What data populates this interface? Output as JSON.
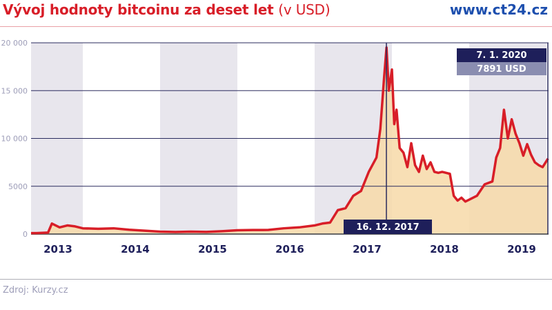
{
  "header": {
    "title_bold": "Vývoj hodnoty bitcoinu za deset let",
    "title_unit": "(v USD)",
    "brand": "www.ct24.cz"
  },
  "footer": {
    "source": "Zdroj: Kurzy.cz"
  },
  "annotations": {
    "peak_date": "16. 12. 2017",
    "latest_date": "7. 1. 2020",
    "latest_value": "7891 USD"
  },
  "colors": {
    "title": "#d81e28",
    "brand": "#1d4fae",
    "line": "#d81e28",
    "fill": "#f7d9a8",
    "band": "#e8e6ed",
    "grid": "#2a2b5e",
    "label_dark": "#1e1f5a",
    "label_light": "#8a8db0"
  },
  "chart_data": {
    "type": "area",
    "title": "Vývoj hodnoty bitcoinu za deset let (v USD)",
    "xlabel": "",
    "ylabel": "USD",
    "ylim": [
      0,
      20000
    ],
    "yticks": [
      0,
      5000,
      10000,
      15000,
      20000
    ],
    "ytick_labels": [
      "0",
      "5000",
      "10 000",
      "15 000",
      "20 000"
    ],
    "categories": [
      "2013",
      "2014",
      "2015",
      "2016",
      "2017",
      "2018",
      "2019"
    ],
    "grid": true,
    "legend": "none",
    "x": [
      2013.0,
      2013.4,
      2013.55,
      2013.6,
      2013.7,
      2013.8,
      2013.9,
      2014.0,
      2014.2,
      2014.4,
      2014.6,
      2014.8,
      2015.0,
      2015.2,
      2015.4,
      2015.6,
      2015.8,
      2016.0,
      2016.2,
      2016.4,
      2016.6,
      2016.8,
      2017.0,
      2017.1,
      2017.2,
      2017.3,
      2017.4,
      2017.5,
      2017.6,
      2017.7,
      2017.8,
      2017.85,
      2017.9,
      2017.93,
      2017.96,
      2018.0,
      2018.03,
      2018.06,
      2018.1,
      2018.15,
      2018.2,
      2018.25,
      2018.3,
      2018.35,
      2018.4,
      2018.45,
      2018.5,
      2018.55,
      2018.6,
      2018.65,
      2018.7,
      2018.75,
      2018.8,
      2018.85,
      2018.9,
      2018.95,
      2019.0,
      2019.1,
      2019.2,
      2019.3,
      2019.35,
      2019.4,
      2019.45,
      2019.5,
      2019.55,
      2019.6,
      2019.65,
      2019.7,
      2019.75,
      2019.8,
      2019.85,
      2019.9,
      2019.95,
      2020.02
    ],
    "values": [
      100,
      100,
      150,
      1100,
      700,
      900,
      800,
      600,
      550,
      600,
      450,
      350,
      250,
      220,
      250,
      230,
      300,
      400,
      420,
      430,
      600,
      700,
      900,
      1100,
      1200,
      2500,
      2700,
      4000,
      4500,
      6500,
      8000,
      11000,
      16500,
      19500,
      15000,
      17200,
      11500,
      13000,
      9000,
      8500,
      7000,
      9500,
      7200,
      6500,
      8200,
      6800,
      7500,
      6500,
      6400,
      6500,
      6400,
      6300,
      4000,
      3500,
      3800,
      3400,
      3600,
      4000,
      5200,
      5500,
      8000,
      9000,
      13000,
      10000,
      12000,
      10500,
      9500,
      8200,
      9400,
      8300,
      7500,
      7200,
      7000,
      7891
    ],
    "annotations": [
      {
        "x": 2017.96,
        "label": "16. 12. 2017"
      },
      {
        "x": 2020.02,
        "label": "7. 1. 2020",
        "value": "7891 USD"
      }
    ]
  }
}
